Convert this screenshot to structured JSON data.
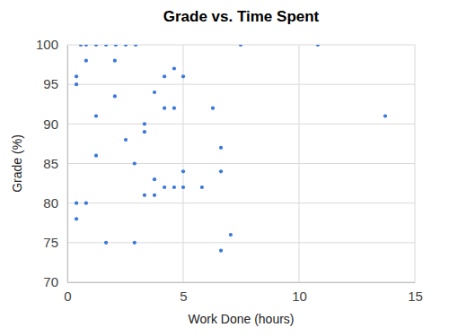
{
  "chart_data": {
    "type": "scatter",
    "title": "Grade vs. Time Spent",
    "x_label": "Work Done (hours)",
    "y_label": "Grade (%)",
    "x": [
      0.58,
      0.81,
      1.24,
      1.67,
      2.09,
      2.52,
      2.95,
      7.48,
      10.81,
      0.81,
      2.05,
      0.39,
      0.39,
      4.19,
      4.61,
      5.0,
      2.05,
      3.76,
      4.19,
      4.61,
      6.28,
      1.24,
      13.72,
      3.33,
      3.33,
      2.52,
      6.63,
      1.24,
      2.9,
      5.0,
      6.63,
      3.76,
      4.19,
      4.61,
      5.0,
      5.81,
      3.33,
      3.76,
      0.39,
      0.81,
      0.39,
      7.05,
      1.67,
      2.9,
      6.63
    ],
    "values": [
      100,
      100,
      100,
      100,
      100,
      100,
      100,
      100,
      100,
      98,
      98,
      96,
      95,
      96,
      97,
      96,
      93.5,
      94,
      92,
      92,
      92,
      91,
      91,
      90,
      89,
      88,
      87,
      86,
      85,
      84,
      84,
      83,
      82,
      82,
      82,
      82,
      81,
      81,
      80,
      80,
      78,
      76,
      75,
      75,
      74
    ],
    "color": "#3c78d8",
    "marker": "circle",
    "xlim": [
      0,
      15
    ],
    "xticks": [
      0,
      5,
      10,
      15
    ],
    "ylim": [
      70,
      100
    ],
    "yticks": [
      70,
      75,
      80,
      85,
      90,
      95,
      100
    ],
    "grid": true
  }
}
